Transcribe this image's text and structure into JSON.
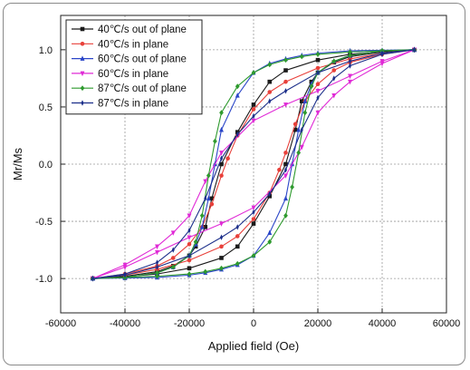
{
  "chart_data": {
    "type": "line",
    "title": "",
    "xlabel": "Applied field (Oe)",
    "ylabel": "Mr/Ms",
    "xlim": [
      -60000,
      60000
    ],
    "ylim": [
      -1.3,
      1.3
    ],
    "x_ticks": [
      -60000,
      -40000,
      -20000,
      0,
      20000,
      40000,
      60000
    ],
    "y_ticks": [
      -1.0,
      -0.5,
      0.0,
      0.5,
      1.0
    ],
    "x_tick_labels": [
      "-60000",
      "-40000",
      "-20000",
      "0",
      "20000",
      "40000",
      "60000"
    ],
    "y_tick_labels": [
      "-1.0",
      "-0.5",
      "0.0",
      "0.5",
      "1.0"
    ],
    "grid": true,
    "legend_position": "top-left",
    "series": [
      {
        "name": "40℃/s out of plane",
        "color": "#1a1a1a",
        "marker": "square",
        "descending": {
          "x": [
            50000,
            40000,
            30000,
            20000,
            10000,
            5000,
            0,
            -5000,
            -10000,
            -13000,
            -15000,
            -18000,
            -20000,
            -25000,
            -30000,
            -40000,
            -50000
          ],
          "y": [
            1.0,
            0.985,
            0.96,
            0.91,
            0.82,
            0.72,
            0.52,
            0.28,
            0.0,
            -0.3,
            -0.55,
            -0.72,
            -0.8,
            -0.89,
            -0.94,
            -0.98,
            -1.0
          ]
        },
        "ascending": {
          "x": [
            -50000,
            -40000,
            -30000,
            -20000,
            -10000,
            -5000,
            0,
            5000,
            10000,
            13000,
            15000,
            18000,
            20000,
            25000,
            30000,
            40000,
            50000
          ],
          "y": [
            -1.0,
            -0.985,
            -0.96,
            -0.91,
            -0.82,
            -0.72,
            -0.52,
            -0.28,
            0.0,
            0.3,
            0.55,
            0.72,
            0.8,
            0.89,
            0.94,
            0.98,
            1.0
          ]
        }
      },
      {
        "name": "40℃/s in plane",
        "color": "#e8403a",
        "marker": "circle",
        "descending": {
          "x": [
            50000,
            40000,
            30000,
            20000,
            10000,
            5000,
            0,
            -5000,
            -8000,
            -10000,
            -13000,
            -16000,
            -20000,
            -25000,
            -30000,
            -40000,
            -50000
          ],
          "y": [
            1.0,
            0.97,
            0.92,
            0.84,
            0.72,
            0.63,
            0.48,
            0.25,
            0.05,
            -0.1,
            -0.35,
            -0.55,
            -0.7,
            -0.82,
            -0.89,
            -0.96,
            -1.0
          ]
        },
        "ascending": {
          "x": [
            -50000,
            -40000,
            -30000,
            -20000,
            -10000,
            -5000,
            0,
            5000,
            8000,
            10000,
            13000,
            16000,
            20000,
            25000,
            30000,
            40000,
            50000
          ],
          "y": [
            -1.0,
            -0.97,
            -0.92,
            -0.84,
            -0.72,
            -0.63,
            -0.48,
            -0.25,
            -0.05,
            0.1,
            0.35,
            0.55,
            0.7,
            0.82,
            0.89,
            0.96,
            1.0
          ]
        }
      },
      {
        "name": "60℃/s out of plane",
        "color": "#2b46c8",
        "marker": "triangle",
        "descending": {
          "x": [
            50000,
            40000,
            30000,
            20000,
            15000,
            10000,
            5000,
            0,
            -5000,
            -10000,
            -12000,
            -14000,
            -16000,
            -18000,
            -20000,
            -25000,
            -30000,
            -40000,
            -50000
          ],
          "y": [
            1.0,
            0.995,
            0.99,
            0.97,
            0.95,
            0.92,
            0.88,
            0.8,
            0.6,
            0.3,
            0.0,
            -0.3,
            -0.55,
            -0.7,
            -0.8,
            -0.9,
            -0.95,
            -0.99,
            -1.0
          ]
        },
        "ascending": {
          "x": [
            -50000,
            -40000,
            -30000,
            -20000,
            -15000,
            -10000,
            -5000,
            0,
            5000,
            10000,
            12000,
            14000,
            16000,
            18000,
            20000,
            25000,
            30000,
            40000,
            50000
          ],
          "y": [
            -1.0,
            -0.995,
            -0.99,
            -0.97,
            -0.95,
            -0.92,
            -0.88,
            -0.8,
            -0.6,
            -0.3,
            0.0,
            0.3,
            0.55,
            0.7,
            0.8,
            0.9,
            0.95,
            0.99,
            1.0
          ]
        }
      },
      {
        "name": "60℃/s in plane",
        "color": "#e02ad6",
        "marker": "triangle-down",
        "descending": {
          "x": [
            50000,
            40000,
            30000,
            20000,
            10000,
            0,
            -10000,
            -15000,
            -20000,
            -25000,
            -30000,
            -40000,
            -50000
          ],
          "y": [
            1.0,
            0.9,
            0.77,
            0.64,
            0.52,
            0.38,
            0.1,
            -0.15,
            -0.45,
            -0.6,
            -0.72,
            -0.88,
            -1.0
          ]
        },
        "ascending": {
          "x": [
            -50000,
            -40000,
            -30000,
            -20000,
            -10000,
            0,
            10000,
            15000,
            20000,
            25000,
            30000,
            40000,
            50000
          ],
          "y": [
            -1.0,
            -0.9,
            -0.77,
            -0.64,
            -0.52,
            -0.38,
            -0.1,
            0.15,
            0.45,
            0.6,
            0.72,
            0.88,
            1.0
          ]
        }
      },
      {
        "name": "87℃/s out of plane",
        "color": "#2e9a2e",
        "marker": "diamond",
        "descending": {
          "x": [
            50000,
            40000,
            30000,
            20000,
            15000,
            10000,
            5000,
            0,
            -5000,
            -10000,
            -12000,
            -14000,
            -16000,
            -18000,
            -20000,
            -25000,
            -30000,
            -40000,
            -50000
          ],
          "y": [
            1.0,
            0.99,
            0.98,
            0.96,
            0.94,
            0.91,
            0.87,
            0.8,
            0.68,
            0.45,
            0.2,
            -0.1,
            -0.45,
            -0.68,
            -0.8,
            -0.9,
            -0.95,
            -0.99,
            -1.0
          ]
        },
        "ascending": {
          "x": [
            -50000,
            -40000,
            -30000,
            -20000,
            -15000,
            -10000,
            -5000,
            0,
            5000,
            10000,
            12000,
            14000,
            16000,
            18000,
            20000,
            25000,
            30000,
            40000,
            50000
          ],
          "y": [
            -1.0,
            -0.99,
            -0.98,
            -0.96,
            -0.94,
            -0.91,
            -0.87,
            -0.8,
            -0.68,
            -0.45,
            -0.2,
            0.1,
            0.45,
            0.68,
            0.8,
            0.9,
            0.95,
            0.99,
            1.0
          ]
        }
      },
      {
        "name": "87℃/s in plane",
        "color": "#1c2f8a",
        "marker": "star",
        "descending": {
          "x": [
            50000,
            40000,
            30000,
            20000,
            10000,
            5000,
            0,
            -5000,
            -10000,
            -15000,
            -20000,
            -25000,
            -30000,
            -40000,
            -50000
          ],
          "y": [
            1.0,
            0.97,
            0.9,
            0.8,
            0.64,
            0.55,
            0.42,
            0.26,
            0.05,
            -0.3,
            -0.58,
            -0.75,
            -0.86,
            -0.96,
            -1.0
          ]
        },
        "ascending": {
          "x": [
            -50000,
            -40000,
            -30000,
            -20000,
            -10000,
            -5000,
            0,
            5000,
            10000,
            15000,
            20000,
            25000,
            30000,
            40000,
            50000
          ],
          "y": [
            -1.0,
            -0.97,
            -0.9,
            -0.8,
            -0.64,
            -0.55,
            -0.42,
            -0.26,
            -0.05,
            0.3,
            0.58,
            0.75,
            0.86,
            0.96,
            1.0
          ]
        }
      }
    ]
  }
}
